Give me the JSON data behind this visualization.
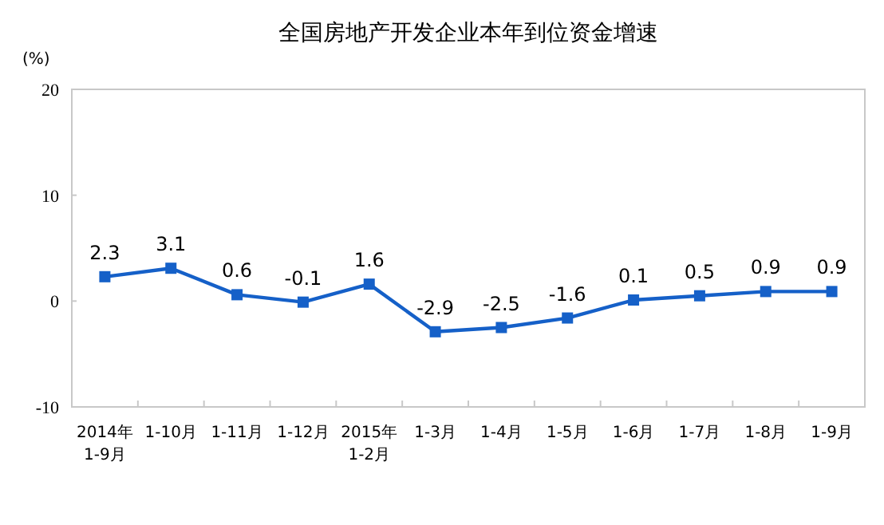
{
  "chart_data": {
    "type": "line",
    "title": "全国房地产开发企业本年到位资金增速",
    "ylabel": "(%)",
    "categories": [
      "2014年\n1-9月",
      "1-10月",
      "1-11月",
      "1-12月",
      "2015年\n1-2月",
      "1-3月",
      "1-4月",
      "1-5月",
      "1-6月",
      "1-7月",
      "1-8月",
      "1-9月"
    ],
    "series": [
      {
        "color": "#1560c8",
        "values": [
          2.3,
          3.1,
          0.6,
          -0.1,
          1.6,
          -2.9,
          -2.5,
          -1.6,
          0.1,
          0.5,
          0.9,
          0.9
        ]
      }
    ],
    "ylim": [
      -10,
      20
    ],
    "yticks": [
      -10,
      0,
      10,
      20
    ],
    "marker": "square",
    "line_style": "solid",
    "data_labels": true
  }
}
